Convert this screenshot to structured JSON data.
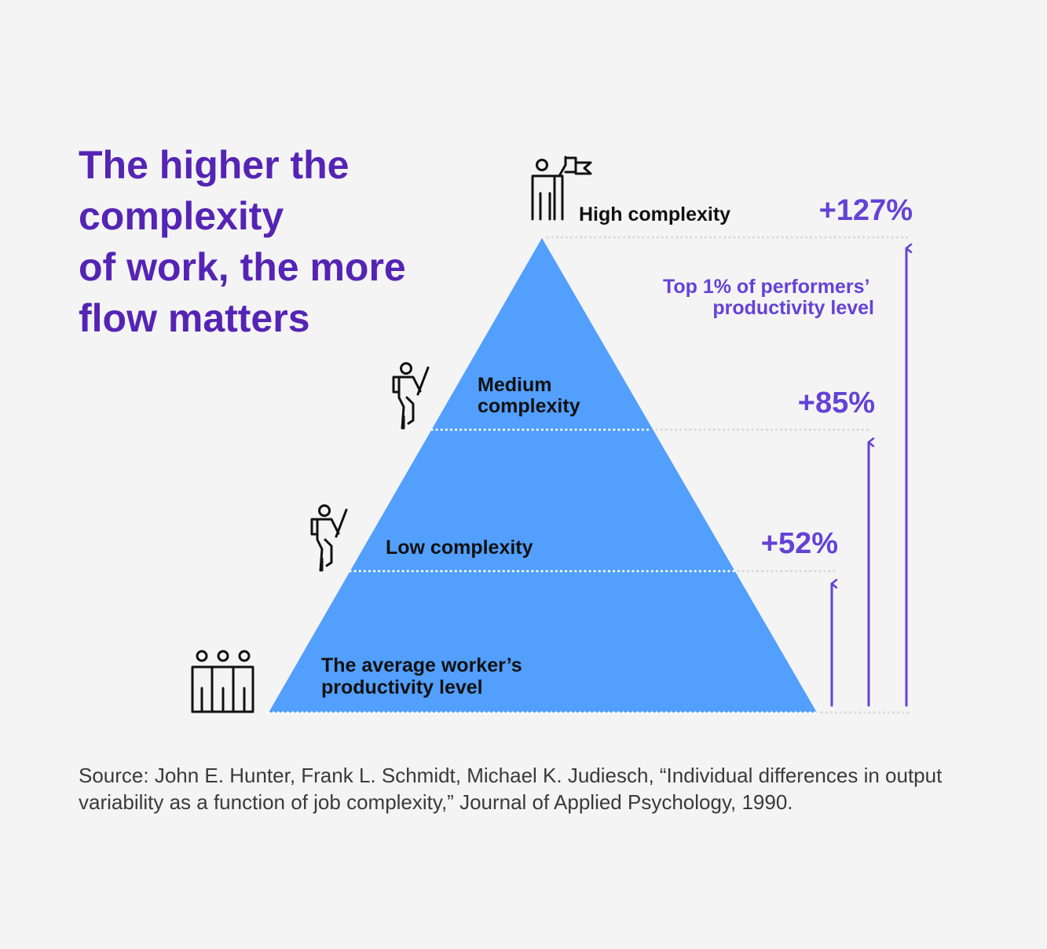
{
  "title": {
    "lines": [
      "The higher the",
      "complexity",
      "of work, the more",
      "flow matters"
    ]
  },
  "levels": {
    "high": {
      "label": "High complexity",
      "value": "+127%",
      "icon": "leader-flag-icon"
    },
    "medium": {
      "label_lines": [
        "Medium",
        "complexity"
      ],
      "value": "+85%",
      "icon": "climber-icon"
    },
    "low": {
      "label": "Low complexity",
      "value": "+52%",
      "icon": "climber-icon"
    },
    "base": {
      "label_lines": [
        "The average worker’s",
        "productivity level"
      ],
      "icon": "group-of-people-icon"
    }
  },
  "top_note": {
    "lines": [
      "Top 1% of performers’",
      "productivity level"
    ]
  },
  "source": {
    "lines": [
      "Source: John E. Hunter, Frank L. Schmidt, Michael K. Judiesch, “Individual differences in output",
      "variability as a function of job complexity,” Journal of Applied Psychology, 1990."
    ]
  },
  "colors": {
    "title": "#5524b4",
    "accent": "#6442d6",
    "pyramid": "#529ffd",
    "text": "#111111",
    "dotted": "#ffffff",
    "dotted_outside": "#d8d8d8"
  }
}
